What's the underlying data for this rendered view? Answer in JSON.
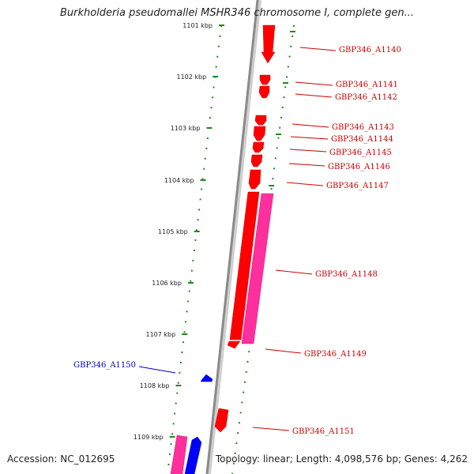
{
  "title": "Burkholderia pseudomallei MSHR346 chromosome I, complete gen...",
  "footer": {
    "accession": "Accession: NC_012695",
    "topology": "Topology: linear; Length: 4,098,576 bp; Genes: 4,262"
  },
  "colors": {
    "backbone": "#8a8a8a",
    "ruler_dots": "#1e8a1e",
    "forward_gene": "#ff0000",
    "cds_feature": "#ff2f9e",
    "reverse_gene": "#0000ff",
    "forward_label": "#cc0000",
    "reverse_label": "#0000bb"
  },
  "ruler": {
    "unit": "kbp",
    "ticks": [
      {
        "label": "1101 kbp"
      },
      {
        "label": "1102 kbp"
      },
      {
        "label": "1103 kbp"
      },
      {
        "label": "1104 kbp"
      },
      {
        "label": "1105 kbp"
      },
      {
        "label": "1106 kbp"
      },
      {
        "label": "1107 kbp"
      },
      {
        "label": "1108 kbp"
      },
      {
        "label": "1109 kbp"
      }
    ]
  },
  "genes": [
    {
      "label": "GBP346_A1140",
      "strand": "forward"
    },
    {
      "label": "GBP346_A1141",
      "strand": "forward"
    },
    {
      "label": "GBP346_A1142",
      "strand": "forward"
    },
    {
      "label": "GBP346_A1143",
      "strand": "forward"
    },
    {
      "label": "GBP346_A1144",
      "strand": "forward"
    },
    {
      "label": "GBP346_A1145",
      "strand": "forward"
    },
    {
      "label": "GBP346_A1146",
      "strand": "forward"
    },
    {
      "label": "GBP346_A1147",
      "strand": "forward"
    },
    {
      "label": "GBP346_A1148",
      "strand": "forward"
    },
    {
      "label": "GBP346_A1149",
      "strand": "forward"
    },
    {
      "label": "GBP346_A1150",
      "strand": "reverse"
    },
    {
      "label": "GBP346_A1151",
      "strand": "forward"
    }
  ]
}
